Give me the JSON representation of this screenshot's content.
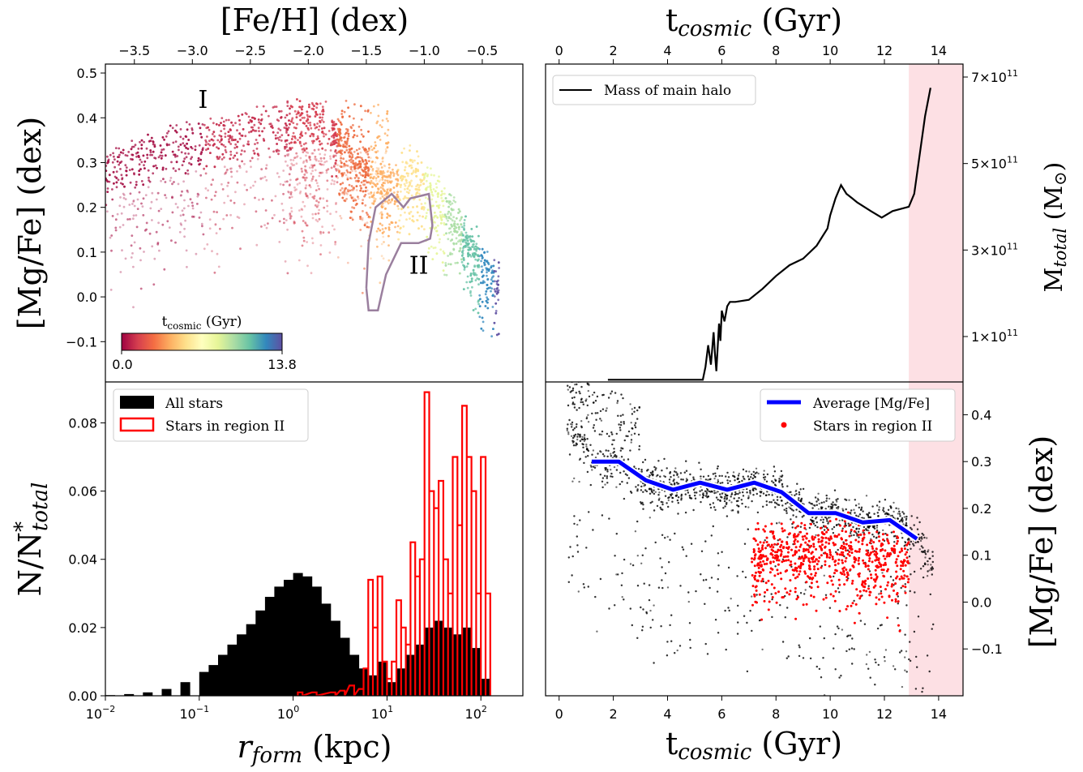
{
  "chart_data": [
    {
      "id": "top_left",
      "type": "scatter",
      "xlabel_top": "[Fe/H] (dex)",
      "ylabel": "[Mg/Fe] (dex)",
      "xlim": [
        -3.75,
        -0.15
      ],
      "ylim": [
        -0.19,
        0.52
      ],
      "xticks": [
        -3.5,
        -3.0,
        -2.5,
        -2.0,
        -1.5,
        -1.0,
        -0.5
      ],
      "xtick_labels": [
        "−3.5",
        "−3.0",
        "−2.5",
        "−2.0",
        "−1.5",
        "−1.0",
        "−0.5"
      ],
      "yticks": [
        -0.1,
        0.0,
        0.1,
        0.2,
        0.3,
        0.4,
        0.5
      ],
      "ytick_labels": [
        "−0.1",
        "0.0",
        "0.1",
        "0.2",
        "0.3",
        "0.4",
        "0.5"
      ],
      "annotations": [
        "I",
        "II"
      ],
      "colorbar": {
        "label": "t",
        "label_sub": "cosmic",
        "label_unit": " (Gyr)",
        "min_label": "0.0",
        "max_label": "13.8",
        "colormap": "Spectral"
      },
      "color_stops": [
        {
          "feh": -3.4,
          "mgfe": 0.4,
          "color": "#a50f44"
        },
        {
          "feh": -2.4,
          "mgfe": 0.42,
          "color": "#c42a4a"
        },
        {
          "feh": -1.9,
          "mgfe": 0.41,
          "color": "#d53e4f"
        },
        {
          "feh": -1.6,
          "mgfe": 0.33,
          "color": "#ee6a3d"
        },
        {
          "feh": -1.35,
          "mgfe": 0.27,
          "color": "#fdae61"
        },
        {
          "feh": -1.1,
          "mgfe": 0.3,
          "color": "#fee08b"
        },
        {
          "feh": -0.9,
          "mgfe": 0.24,
          "color": "#e6f598"
        },
        {
          "feh": -0.75,
          "mgfe": 0.2,
          "color": "#abdda4"
        },
        {
          "feh": -0.6,
          "mgfe": 0.13,
          "color": "#66c2a5"
        },
        {
          "feh": -0.45,
          "mgfe": 0.08,
          "color": "#3288bd"
        },
        {
          "feh": -0.35,
          "mgfe": 0.05,
          "color": "#5e4fa2"
        }
      ],
      "region_II_contour": [
        [
          -1.5,
          0.02
        ],
        [
          -1.48,
          0.12
        ],
        [
          -1.42,
          0.2
        ],
        [
          -1.28,
          0.23
        ],
        [
          -1.18,
          0.2
        ],
        [
          -1.12,
          0.22
        ],
        [
          -0.96,
          0.23
        ],
        [
          -0.93,
          0.16
        ],
        [
          -0.95,
          0.13
        ],
        [
          -1.05,
          0.12
        ],
        [
          -1.2,
          0.12
        ],
        [
          -1.33,
          0.05
        ],
        [
          -1.4,
          -0.03
        ],
        [
          -1.48,
          -0.03
        ],
        [
          -1.5,
          0.02
        ]
      ]
    },
    {
      "id": "top_right",
      "type": "line",
      "xlabel_top": "t",
      "xlabel_top_sub": "cosmic",
      "xlabel_top_unit": " (Gyr)",
      "ylabel": "M",
      "ylabel_sub": "total",
      "ylabel_unit": " (M",
      "xlim": [
        -0.5,
        14.9
      ],
      "ylim": [
        -5000000000.0,
        730000000000.0
      ],
      "xticks": [
        0,
        2,
        4,
        6,
        8,
        10,
        12,
        14
      ],
      "xtick_labels": [
        "0",
        "2",
        "4",
        "6",
        "8",
        "10",
        "12",
        "14"
      ],
      "yticks": [
        100000000000.0,
        300000000000.0,
        500000000000.0,
        700000000000.0
      ],
      "ytick_labels": [
        "1×10",
        "3×10",
        "5×10",
        "7×10"
      ],
      "ytick_exp": "11",
      "shaded_span": [
        12.9,
        14.9
      ],
      "shade_color": "#fde0e4",
      "series": [
        {
          "name": "Mass of main halo",
          "color": "#000000",
          "x": [
            1.8,
            5.3,
            5.4,
            5.5,
            5.6,
            5.7,
            5.75,
            5.8,
            5.9,
            5.95,
            6.0,
            6.1,
            6.2,
            6.3,
            6.5,
            7.0,
            7.5,
            8.0,
            8.5,
            9.0,
            9.5,
            9.9,
            10.0,
            10.2,
            10.4,
            10.6,
            10.8,
            11.0,
            11.5,
            11.9,
            12.3,
            12.9,
            13.1,
            13.3,
            13.5,
            13.7
          ],
          "y": [
            0.0,
            0.0,
            30000000000.0,
            80000000000.0,
            35000000000.0,
            110000000000.0,
            60000000000.0,
            20000000000.0,
            130000000000.0,
            90000000000.0,
            160000000000.0,
            135000000000.0,
            170000000000.0,
            180000000000.0,
            180000000000.0,
            185000000000.0,
            210000000000.0,
            240000000000.0,
            265000000000.0,
            280000000000.0,
            310000000000.0,
            350000000000.0,
            380000000000.0,
            420000000000.0,
            450000000000.0,
            430000000000.0,
            420000000000.0,
            410000000000.0,
            390000000000.0,
            375000000000.0,
            390000000000.0,
            400000000000.0,
            430000000000.0,
            520000000000.0,
            610000000000.0,
            675000000000.0
          ]
        }
      ]
    },
    {
      "id": "bottom_left",
      "type": "bar",
      "xlabel": "r",
      "xlabel_sub": "form",
      "xlabel_unit": " (kpc)",
      "ylabel": "N/N",
      "ylabel_sup": "*",
      "ylabel_sub": "total",
      "xscale": "log",
      "xlim": [
        0.01,
        280
      ],
      "ylim": [
        0.0,
        0.092
      ],
      "xticks": [
        0.01,
        0.1,
        1,
        10,
        100
      ],
      "xtick_base": "10",
      "xtick_exps": [
        "−2",
        "−1",
        "0",
        "1",
        "2"
      ],
      "yticks": [
        0.0,
        0.02,
        0.04,
        0.06,
        0.08
      ],
      "ytick_labels": [
        "0.00",
        "0.02",
        "0.04",
        "0.06",
        "0.08"
      ],
      "series": [
        {
          "name": "All stars",
          "style": "filled",
          "color": "#000000",
          "log_x": [
            -2.0,
            -1.8,
            -1.6,
            -1.4,
            -1.2,
            -1.0,
            -0.9,
            -0.8,
            -0.7,
            -0.6,
            -0.5,
            -0.4,
            -0.3,
            -0.2,
            -0.1,
            0.0,
            0.1,
            0.2,
            0.3,
            0.4,
            0.5,
            0.6,
            0.7,
            0.8,
            0.9,
            1.0,
            1.1,
            1.2,
            1.3,
            1.4,
            1.5,
            1.6,
            1.7,
            1.8,
            1.9,
            2.0
          ],
          "values": [
            0.0002,
            0.0005,
            0.001,
            0.002,
            0.004,
            0.007,
            0.009,
            0.012,
            0.015,
            0.018,
            0.021,
            0.025,
            0.029,
            0.032,
            0.034,
            0.036,
            0.035,
            0.032,
            0.027,
            0.022,
            0.017,
            0.012,
            0.008,
            0.006,
            0.01,
            0.004,
            0.008,
            0.012,
            0.015,
            0.02,
            0.022,
            0.02,
            0.018,
            0.02,
            0.014,
            0.005
          ]
        },
        {
          "name": "Stars in region II",
          "style": "step",
          "color": "#ff0000",
          "log_x": [
            0.05,
            0.2,
            0.4,
            0.5,
            0.6,
            0.7,
            0.75,
            0.8,
            0.85,
            0.9,
            0.95,
            1.0,
            1.05,
            1.1,
            1.15,
            1.2,
            1.25,
            1.3,
            1.35,
            1.4,
            1.45,
            1.5,
            1.55,
            1.6,
            1.65,
            1.7,
            1.75,
            1.8,
            1.85,
            1.9,
            1.95,
            2.0,
            2.05
          ],
          "values": [
            0.001,
            0.001,
            0.001,
            0.0015,
            0.003,
            0.002,
            0.008,
            0.034,
            0.02,
            0.035,
            0.01,
            0.005,
            0.01,
            0.028,
            0.02,
            0.015,
            0.045,
            0.035,
            0.04,
            0.089,
            0.06,
            0.055,
            0.063,
            0.04,
            0.03,
            0.07,
            0.05,
            0.085,
            0.07,
            0.06,
            0.03,
            0.07,
            0.03
          ]
        }
      ]
    },
    {
      "id": "bottom_right",
      "type": "scatter",
      "xlabel": "t",
      "xlabel_sub": "cosmic",
      "xlabel_unit": " (Gyr)",
      "ylabel": "[Mg/Fe] (dex)",
      "xlim": [
        -0.5,
        14.9
      ],
      "ylim": [
        -0.2,
        0.47
      ],
      "xticks": [
        0,
        2,
        4,
        6,
        8,
        10,
        12,
        14
      ],
      "xtick_labels": [
        "0",
        "2",
        "4",
        "6",
        "8",
        "10",
        "12",
        "14"
      ],
      "yticks": [
        -0.1,
        0.0,
        0.1,
        0.2,
        0.3,
        0.4
      ],
      "ytick_labels": [
        "−0.1",
        "0.0",
        "0.1",
        "0.2",
        "0.3",
        "0.4"
      ],
      "shaded_span": [
        12.9,
        14.9
      ],
      "shade_color": "#fde0e4",
      "series": [
        {
          "name": "Average [Mg/Fe]",
          "color": "#0000ff",
          "x": [
            1.2,
            2.2,
            3.2,
            4.2,
            5.2,
            6.2,
            7.2,
            8.2,
            9.2,
            10.2,
            11.2,
            12.2,
            13.2
          ],
          "y": [
            0.3,
            0.3,
            0.26,
            0.24,
            0.255,
            0.24,
            0.255,
            0.235,
            0.19,
            0.19,
            0.17,
            0.175,
            0.135
          ]
        },
        {
          "name": "Stars in region II",
          "color": "#ff0000"
        }
      ]
    }
  ]
}
